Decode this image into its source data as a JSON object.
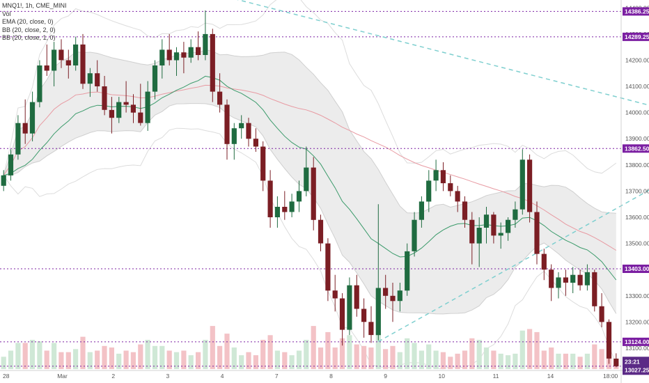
{
  "legend": {
    "symbol": "MNQ1!, 1h, CME_MINI",
    "vol": "Vol",
    "ema": "EMA (20, close, 0)",
    "bb1": "BB (20, close, 2, 0)",
    "bb2": "BB (20, close, 1, 0)"
  },
  "colors": {
    "up": "#26a69a",
    "down": "#ef5350",
    "up_body": "#1f6b40",
    "down_body": "#7b1e24",
    "vol_up": "#cfe8d6",
    "vol_down": "#f3c2c6",
    "level": "#7b1fa2",
    "trend": "#7ecfcf",
    "ema": "#3a9a6a",
    "band_fill": "#ececec",
    "band_line": "#cfcfcf",
    "sma": "#e89aa2",
    "price_tag": "#7b1fa2",
    "last_tag": "#5b2a86"
  },
  "chart_data": {
    "type": "candlestick",
    "symbol": "MNQ1!",
    "interval": "1h",
    "exchange": "CME_MINI",
    "y_range": [
      13020,
      14430
    ],
    "y_ticks": [
      "14400.00",
      "14300.00",
      "14200.00",
      "14100.00",
      "14000.00",
      "13900.00",
      "13800.00",
      "13700.00",
      "13600.00",
      "13500.00",
      "13400.00",
      "13300.00",
      "13200.00",
      "13100.00"
    ],
    "x_labels": [
      "28",
      "Mar",
      "2",
      "3",
      "4",
      "7",
      "8",
      "9",
      "10",
      "11",
      "14",
      "18:00"
    ],
    "levels": [
      {
        "price": 14386.25,
        "label": "14386.25"
      },
      {
        "price": 14289.25,
        "label": "14289.25"
      },
      {
        "price": 13862.5,
        "label": "13862.50"
      },
      {
        "price": 13403.0,
        "label": "13403.00"
      },
      {
        "price": 13124.0,
        "label": "13124.00"
      },
      {
        "price": 13031.0,
        "label": "13031.00"
      }
    ],
    "last_price": {
      "price": 13027.25,
      "label": "13027.25",
      "countdown": "23:21"
    },
    "trendlines": [
      {
        "name": "down",
        "points": [
          [
            0.1,
            14660
          ],
          [
            90,
            14025
          ]
        ]
      },
      {
        "name": "up",
        "points": [
          [
            52,
            13125
          ],
          [
            90,
            13710
          ]
        ]
      }
    ],
    "candles": [
      [
        13720,
        13780,
        13700,
        13760
      ],
      [
        13760,
        13860,
        13740,
        13840
      ],
      [
        13840,
        13990,
        13820,
        13960
      ],
      [
        13960,
        14050,
        13880,
        13920
      ],
      [
        13920,
        14080,
        13890,
        14040
      ],
      [
        14040,
        14200,
        14020,
        14180
      ],
      [
        14180,
        14260,
        14140,
        14160
      ],
      [
        14160,
        14270,
        14100,
        14240
      ],
      [
        14240,
        14280,
        14170,
        14200
      ],
      [
        14200,
        14240,
        14130,
        14180
      ],
      [
        14180,
        14290,
        14160,
        14260
      ],
      [
        14260,
        14300,
        14090,
        14110
      ],
      [
        14110,
        14170,
        14060,
        14150
      ],
      [
        14150,
        14200,
        14080,
        14100
      ],
      [
        14100,
        14140,
        13990,
        14010
      ],
      [
        14010,
        14060,
        13920,
        13980
      ],
      [
        13980,
        14060,
        13960,
        14040
      ],
      [
        14040,
        14120,
        14000,
        14030
      ],
      [
        14030,
        14070,
        13960,
        14000
      ],
      [
        14000,
        14110,
        13950,
        13960
      ],
      [
        13960,
        14120,
        13930,
        14080
      ],
      [
        14080,
        14200,
        14050,
        14180
      ],
      [
        14180,
        14280,
        14130,
        14240
      ],
      [
        14240,
        14300,
        14180,
        14200
      ],
      [
        14200,
        14250,
        14140,
        14230
      ],
      [
        14230,
        14270,
        14150,
        14210
      ],
      [
        14210,
        14280,
        14190,
        14250
      ],
      [
        14250,
        14310,
        14200,
        14220
      ],
      [
        14220,
        14390,
        14200,
        14300
      ],
      [
        14300,
        14320,
        14040,
        14080
      ],
      [
        14080,
        14150,
        14000,
        14030
      ],
      [
        14030,
        14050,
        13820,
        13880
      ],
      [
        13880,
        13960,
        13820,
        13940
      ],
      [
        13940,
        13990,
        13900,
        13960
      ],
      [
        13960,
        13980,
        13870,
        13900
      ],
      [
        13900,
        13940,
        13850,
        13870
      ],
      [
        13870,
        13890,
        13700,
        13740
      ],
      [
        13740,
        13780,
        13560,
        13600
      ],
      [
        13600,
        13680,
        13560,
        13640
      ],
      [
        13640,
        13700,
        13590,
        13620
      ],
      [
        13620,
        13690,
        13600,
        13660
      ],
      [
        13660,
        13740,
        13620,
        13700
      ],
      [
        13700,
        13870,
        13680,
        13790
      ],
      [
        13790,
        13830,
        13550,
        13590
      ],
      [
        13590,
        13610,
        13470,
        13500
      ],
      [
        13500,
        13520,
        13280,
        13320
      ],
      [
        13320,
        13380,
        13240,
        13290
      ],
      [
        13290,
        13310,
        13110,
        13170
      ],
      [
        13170,
        13370,
        13150,
        13340
      ],
      [
        13340,
        13380,
        13220,
        13250
      ],
      [
        13250,
        13290,
        13140,
        13200
      ],
      [
        13200,
        13260,
        13120,
        13150
      ],
      [
        13150,
        13650,
        13130,
        13330
      ],
      [
        13330,
        13380,
        13250,
        13300
      ],
      [
        13300,
        13350,
        13200,
        13280
      ],
      [
        13280,
        13350,
        13240,
        13320
      ],
      [
        13320,
        13500,
        13300,
        13470
      ],
      [
        13470,
        13620,
        13450,
        13590
      ],
      [
        13590,
        13680,
        13560,
        13660
      ],
      [
        13660,
        13780,
        13620,
        13740
      ],
      [
        13740,
        13820,
        13700,
        13780
      ],
      [
        13780,
        13810,
        13700,
        13730
      ],
      [
        13730,
        13760,
        13680,
        13700
      ],
      [
        13700,
        13720,
        13620,
        13660
      ],
      [
        13660,
        13680,
        13560,
        13590
      ],
      [
        13590,
        13620,
        13420,
        13500
      ],
      [
        13500,
        13600,
        13410,
        13560
      ],
      [
        13560,
        13640,
        13500,
        13610
      ],
      [
        13610,
        13620,
        13500,
        13530
      ],
      [
        13530,
        13580,
        13480,
        13540
      ],
      [
        13540,
        13600,
        13510,
        13590
      ],
      [
        13590,
        13660,
        13560,
        13630
      ],
      [
        13630,
        13860,
        13610,
        13820
      ],
      [
        13820,
        13840,
        13580,
        13620
      ],
      [
        13620,
        13660,
        13420,
        13460
      ],
      [
        13460,
        13480,
        13360,
        13400
      ],
      [
        13400,
        13420,
        13280,
        13330
      ],
      [
        13330,
        13390,
        13290,
        13370
      ],
      [
        13370,
        13400,
        13300,
        13350
      ],
      [
        13350,
        13410,
        13310,
        13380
      ],
      [
        13380,
        13400,
        13320,
        13340
      ],
      [
        13340,
        13420,
        13320,
        13390
      ],
      [
        13390,
        13400,
        13240,
        13260
      ],
      [
        13260,
        13310,
        13180,
        13200
      ],
      [
        13200,
        13210,
        13040,
        13060
      ],
      [
        13060,
        13080,
        13027,
        13031
      ]
    ]
  }
}
